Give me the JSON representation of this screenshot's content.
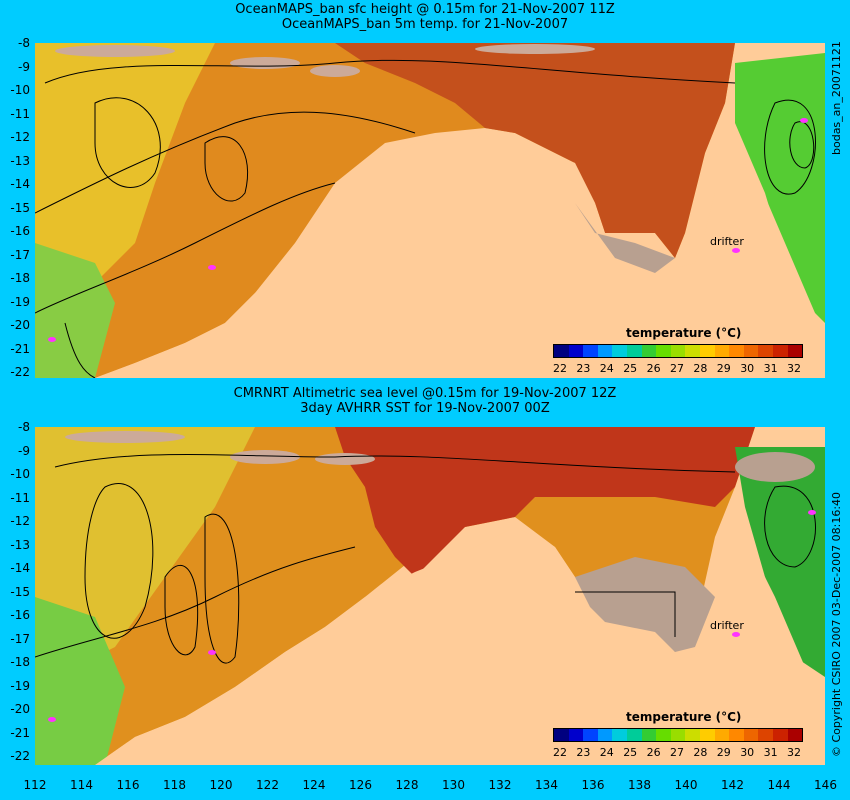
{
  "top": {
    "title_line1": "OceanMAPS_ban sfc height @ 0.15m for 21-Nov-2007 11Z",
    "title_line2": "OceanMAPS_ban 5m temp. for 21-Nov-2007",
    "side_label": "bodas_an_20071121",
    "legend_title": "temperature (°C)",
    "drifter_label": "drifter"
  },
  "bottom": {
    "title_line1": "CMRNRT Altimetric sea level  @0.15m  for 19-Nov-2007 12Z",
    "title_line2": "3day AVHRR SST for 19-Nov-2007 00Z",
    "side_label": "© Copyright CSIRO 2007   03-Dec-2007 08:16:40",
    "legend_title": "temperature (°C)",
    "drifter_label": "drifter"
  },
  "y_ticks": [
    "-8",
    "-9",
    "-10",
    "-11",
    "-12",
    "-13",
    "-14",
    "-15",
    "-16",
    "-17",
    "-18",
    "-19",
    "-20",
    "-21",
    "-22"
  ],
  "x_ticks": [
    "112",
    "114",
    "116",
    "118",
    "120",
    "122",
    "124",
    "126",
    "128",
    "130",
    "132",
    "134",
    "136",
    "138",
    "140",
    "142",
    "144",
    "146"
  ],
  "colorbar": {
    "labels": [
      "22",
      "23",
      "24",
      "25",
      "26",
      "27",
      "28",
      "29",
      "30",
      "31",
      "32"
    ],
    "colors": [
      "#000080",
      "#0000cc",
      "#0044ff",
      "#0099ff",
      "#00ccdd",
      "#00cc99",
      "#33cc33",
      "#66dd00",
      "#99dd00",
      "#ccdd00",
      "#ffcc00",
      "#ffaa00",
      "#ff8800",
      "#ee6600",
      "#dd4400",
      "#cc2200",
      "#aa0000"
    ]
  },
  "colors": {
    "background": "#00ccff",
    "land": "#ffcc99",
    "island": "#ccaa99",
    "warm_sea": "#cc3300",
    "mid_sea": "#ee8800",
    "cool_sea": "#ccdd33",
    "cold_sea": "#66cc44",
    "drifter_marker": "#ff33ff"
  }
}
